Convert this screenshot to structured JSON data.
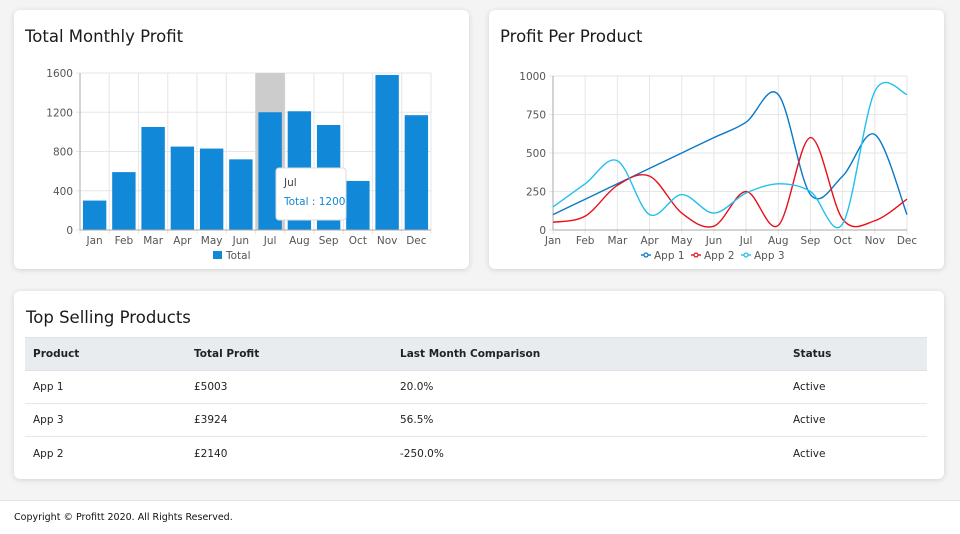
{
  "monthly_card": {
    "title": "Total Monthly Profit"
  },
  "product_card": {
    "title": "Profit Per Product"
  },
  "top_card": {
    "title": "Top Selling Products",
    "headers": [
      "Product",
      "Total Profit",
      "Last Month Comparison",
      "Status"
    ],
    "rows": [
      [
        "App 1",
        "£5003",
        "20.0%",
        "Active"
      ],
      [
        "App 3",
        "£3924",
        "56.5%",
        "Active"
      ],
      [
        "App 2",
        "£2140",
        "-250.0%",
        "Active"
      ]
    ]
  },
  "footer": {
    "text": "Copyright © Profitt 2020. All Rights Reserved."
  },
  "chart_data": [
    {
      "type": "bar",
      "title": "Total Monthly Profit",
      "categories": [
        "Jan",
        "Feb",
        "Mar",
        "Apr",
        "May",
        "Jun",
        "Jul",
        "Aug",
        "Sep",
        "Oct",
        "Nov",
        "Dec"
      ],
      "series": [
        {
          "name": "Total",
          "values": [
            300,
            590,
            1050,
            850,
            830,
            720,
            1200,
            1210,
            1070,
            500,
            1580,
            1170
          ],
          "color": "#1288d8"
        }
      ],
      "ylim": [
        0,
        1600
      ],
      "yticks": [
        "0",
        "400",
        "800",
        "1200",
        "1600"
      ],
      "grid": true,
      "legend": "bottom",
      "hover": {
        "category": "Jul",
        "title": "Jul",
        "label": "Total : 1200",
        "highlight_color": "#cccccc"
      }
    },
    {
      "type": "line",
      "title": "Profit Per Product",
      "categories": [
        "Jan",
        "Feb",
        "Mar",
        "Apr",
        "May",
        "Jun",
        "Jul",
        "Aug",
        "Sep",
        "Oct",
        "Nov",
        "Dec"
      ],
      "series": [
        {
          "name": "App 1",
          "values": [
            100,
            200,
            300,
            400,
            500,
            600,
            700,
            880,
            230,
            350,
            620,
            100
          ],
          "color": "#0a78c8"
        },
        {
          "name": "App 2",
          "values": [
            50,
            90,
            290,
            350,
            110,
            25,
            250,
            30,
            600,
            70,
            60,
            200
          ],
          "color": "#e8101a"
        },
        {
          "name": "App 3",
          "values": [
            150,
            300,
            450,
            100,
            230,
            110,
            240,
            300,
            250,
            40,
            900,
            880
          ],
          "color": "#22c0ee"
        }
      ],
      "ylim": [
        0,
        1000
      ],
      "yticks": [
        "0",
        "250",
        "500",
        "750",
        "1000"
      ],
      "grid": true,
      "legend": "bottom"
    }
  ]
}
